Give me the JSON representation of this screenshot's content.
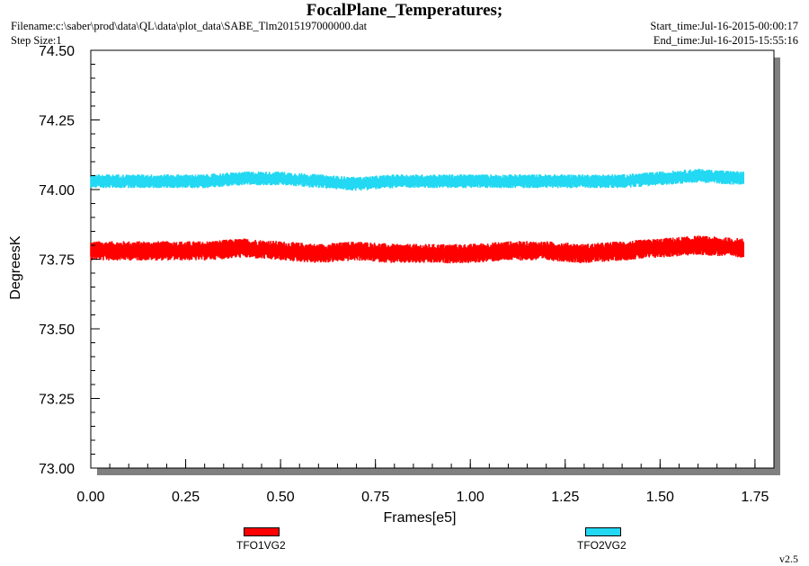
{
  "header": {
    "title": "FocalPlane_Temperatures;",
    "filename": "Filename:c:\\saber\\prod\\data\\QL\\data\\plot_data\\SABE_Tlm2015197000000.dat",
    "step_size": "Step Size:1",
    "start_time": "Start_time:Jul-16-2015-00:00:17",
    "end_time": "End_time:Jul-16-2015-15:55:16",
    "version": "v2.5"
  },
  "colors": {
    "series1": "#ff0000",
    "series2": "#22d8f2",
    "shadow": "#808080"
  },
  "chart_data": {
    "type": "line",
    "title": "FocalPlane_Temperatures;",
    "xlabel": "Frames[e5]",
    "ylabel": "DegreesK",
    "xlim": [
      0,
      1.8
    ],
    "ylim": [
      73.0,
      74.5
    ],
    "x_ticks": [
      "0.00",
      "0.25",
      "0.50",
      "0.75",
      "1.00",
      "1.25",
      "1.50",
      "1.75"
    ],
    "y_ticks": [
      "73.00",
      "73.25",
      "73.50",
      "73.75",
      "74.00",
      "74.25",
      "74.50"
    ],
    "grid": false,
    "legend_position": "bottom",
    "series": [
      {
        "name": "TFO1VG2",
        "x_range": [
          0.0,
          1.72
        ],
        "center": [
          [
            0.0,
            73.78
          ],
          [
            0.1,
            73.78
          ],
          [
            0.2,
            73.78
          ],
          [
            0.3,
            73.78
          ],
          [
            0.4,
            73.79
          ],
          [
            0.5,
            73.78
          ],
          [
            0.6,
            73.77
          ],
          [
            0.7,
            73.78
          ],
          [
            0.8,
            73.77
          ],
          [
            0.9,
            73.77
          ],
          [
            1.0,
            73.77
          ],
          [
            1.1,
            73.78
          ],
          [
            1.2,
            73.78
          ],
          [
            1.3,
            73.77
          ],
          [
            1.4,
            73.78
          ],
          [
            1.5,
            73.79
          ],
          [
            1.6,
            73.8
          ],
          [
            1.72,
            73.79
          ]
        ],
        "spread": 0.035
      },
      {
        "name": "TFO2VG2",
        "x_range": [
          0.0,
          1.72
        ],
        "center": [
          [
            0.0,
            74.03
          ],
          [
            0.1,
            74.03
          ],
          [
            0.2,
            74.03
          ],
          [
            0.3,
            74.03
          ],
          [
            0.4,
            74.04
          ],
          [
            0.5,
            74.04
          ],
          [
            0.6,
            74.03
          ],
          [
            0.7,
            74.02
          ],
          [
            0.8,
            74.03
          ],
          [
            0.9,
            74.03
          ],
          [
            1.0,
            74.03
          ],
          [
            1.1,
            74.03
          ],
          [
            1.2,
            74.03
          ],
          [
            1.3,
            74.03
          ],
          [
            1.4,
            74.03
          ],
          [
            1.5,
            74.04
          ],
          [
            1.6,
            74.05
          ],
          [
            1.72,
            74.04
          ]
        ],
        "spread": 0.025
      }
    ]
  }
}
